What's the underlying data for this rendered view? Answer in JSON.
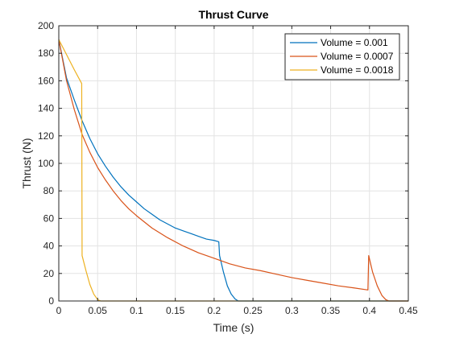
{
  "chart_data": {
    "type": "line",
    "title": "Thrust Curve",
    "xlabel": "Time (s)",
    "ylabel": "Thrust (N)",
    "xlim": [
      0,
      0.45
    ],
    "ylim": [
      0,
      200
    ],
    "x_ticks": [
      0,
      0.05,
      0.1,
      0.15,
      0.2,
      0.25,
      0.3,
      0.35,
      0.4,
      0.45
    ],
    "x_tick_labels": [
      "0",
      "0.05",
      "0.1",
      "0.15",
      "0.2",
      "0.25",
      "0.3",
      "0.35",
      "0.4",
      "0.45"
    ],
    "y_ticks": [
      0,
      20,
      40,
      60,
      80,
      100,
      120,
      140,
      160,
      180,
      200
    ],
    "y_tick_labels": [
      "0",
      "20",
      "40",
      "60",
      "80",
      "100",
      "120",
      "140",
      "160",
      "180",
      "200"
    ],
    "grid": true,
    "legend_position": "top-right",
    "series": [
      {
        "name": "Volume = 0.001",
        "color": "#0072BD",
        "x": [
          0,
          0.01,
          0.02,
          0.03,
          0.04,
          0.05,
          0.06,
          0.07,
          0.08,
          0.09,
          0.1,
          0.11,
          0.12,
          0.13,
          0.14,
          0.15,
          0.16,
          0.17,
          0.18,
          0.19,
          0.2,
          0.206,
          0.207,
          0.212,
          0.217,
          0.222,
          0.227,
          0.231,
          0.45
        ],
        "y": [
          190,
          162,
          146,
          131,
          118,
          107,
          98,
          90,
          83,
          77,
          72,
          67,
          63,
          59,
          56,
          53,
          51,
          49,
          47,
          45,
          44,
          43,
          33,
          21,
          11,
          5,
          1.5,
          0,
          0
        ]
      },
      {
        "name": "Volume = 0.0007",
        "color": "#D95319",
        "x": [
          0,
          0.01,
          0.02,
          0.03,
          0.04,
          0.05,
          0.06,
          0.07,
          0.08,
          0.09,
          0.1,
          0.12,
          0.14,
          0.16,
          0.18,
          0.2,
          0.22,
          0.24,
          0.26,
          0.28,
          0.3,
          0.32,
          0.34,
          0.36,
          0.38,
          0.398,
          0.399,
          0.404,
          0.41,
          0.416,
          0.421,
          0.425,
          0.45
        ],
        "y": [
          190,
          160,
          139,
          121,
          108,
          97,
          88,
          80,
          73,
          67,
          62,
          53,
          46,
          40,
          35,
          31,
          27,
          24,
          22,
          19.5,
          17,
          15,
          13,
          11,
          9.5,
          8,
          33,
          21,
          11,
          4,
          1,
          0,
          0
        ]
      },
      {
        "name": "Volume = 0.0018",
        "color": "#EDB120",
        "x": [
          0,
          0.01,
          0.02,
          0.0295,
          0.03,
          0.035,
          0.04,
          0.045,
          0.05,
          0.054,
          0.45
        ],
        "y": [
          190,
          179,
          168,
          158,
          33,
          22,
          12,
          5,
          1,
          0,
          0
        ]
      }
    ]
  }
}
